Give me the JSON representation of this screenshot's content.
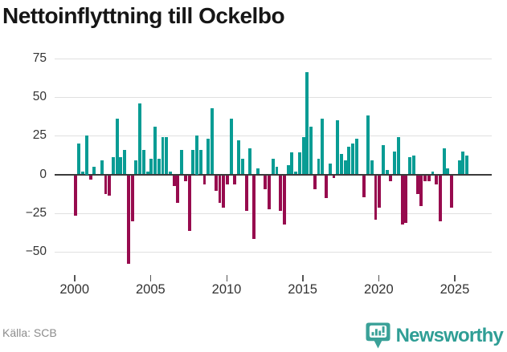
{
  "title": "Nettoinflyttning till Ockelbo",
  "source": "Källa: SCB",
  "logo": {
    "wordmark": "Newsworthy",
    "icon": "bar-chart-badge-icon",
    "color": "#2f9e95"
  },
  "colors": {
    "positive_bar": "#089C94",
    "negative_bar": "#970B4E",
    "zero_axis": "#3b3b3b",
    "gridline": "#e0e0e0",
    "axis_text": "#333333",
    "source_text": "#8c8c8c"
  },
  "chart_data": {
    "type": "bar",
    "title": "Nettoinflyttning till Ockelbo",
    "xlabel": "",
    "ylabel": "",
    "unit": "persons per quarter",
    "x_unit": "quarter",
    "start": "2000-Q1",
    "end": "2025-Q4",
    "grid": true,
    "legend": false,
    "ylim": [
      -62,
      80
    ],
    "y_ticks": [
      75,
      50,
      25,
      0,
      -25,
      -50
    ],
    "x_ticks": [
      2000,
      2005,
      2010,
      2015,
      2020,
      2025
    ],
    "series": [
      {
        "name": "Nettoinflyttning",
        "values": [
          -26,
          20,
          2,
          25,
          -3,
          5,
          0,
          9,
          -12,
          -13,
          11,
          36,
          11,
          16,
          -57,
          -30,
          9,
          46,
          16,
          2,
          10,
          31,
          10,
          24,
          24,
          2,
          -7,
          -18,
          16,
          -4,
          -36,
          16,
          25,
          16,
          -6,
          23,
          43,
          -10,
          -18,
          -21,
          -6,
          36,
          -6,
          22,
          10,
          -23,
          17,
          -41,
          4,
          0,
          -9,
          -22,
          10,
          5,
          -23,
          -32,
          6,
          14,
          2,
          14,
          24,
          66,
          31,
          -9,
          10,
          36,
          -15,
          7,
          -2,
          35,
          13,
          9,
          18,
          20,
          23,
          0,
          -14,
          38,
          9,
          -29,
          -21,
          19,
          3,
          -4,
          15,
          24,
          -32,
          -31,
          11,
          12,
          -12,
          -20,
          -4,
          -4,
          2,
          -6,
          -30,
          17,
          4,
          -21,
          0,
          9,
          15,
          12
        ]
      }
    ]
  }
}
